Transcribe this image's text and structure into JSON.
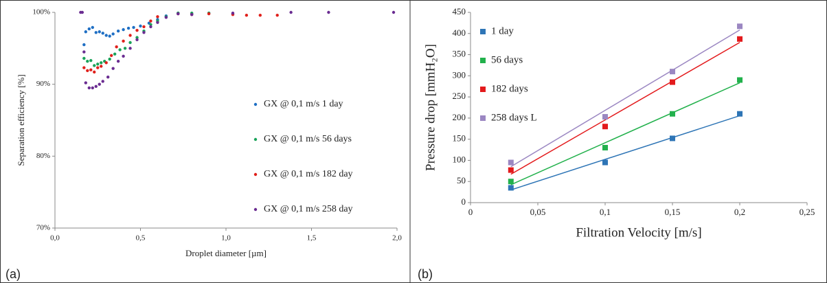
{
  "chart_data": [
    {
      "type": "scatter",
      "label": "(a)",
      "x_label": "Droplet diameter [µm]",
      "y_label": "Separation efficiency [%]",
      "xlim": [
        0,
        2
      ],
      "ylim": [
        70,
        100
      ],
      "xticks": [
        {
          "value": 0,
          "label": "0,0"
        },
        {
          "value": 0.5,
          "label": "0,5"
        },
        {
          "value": 1,
          "label": "1,0"
        },
        {
          "value": 1.5,
          "label": "1,5"
        },
        {
          "value": 2,
          "label": "2,0"
        }
      ],
      "yticks": [
        {
          "value": 70,
          "label": "70%"
        },
        {
          "value": 80,
          "label": "80%"
        },
        {
          "value": 90,
          "label": "90%"
        },
        {
          "value": 100,
          "label": "100%"
        }
      ],
      "grid": false,
      "legend": "right",
      "marker": "dot",
      "series": [
        {
          "name": "GX @ 0,1 m/s 1 day",
          "color": "#1f6fc4",
          "x": [
            0.17,
            0.18,
            0.2,
            0.22,
            0.24,
            0.26,
            0.28,
            0.3,
            0.32,
            0.34,
            0.37,
            0.4,
            0.43,
            0.46,
            0.5,
            0.55,
            0.6,
            0.65,
            0.72,
            0.8,
            0.9,
            1.04
          ],
          "values": [
            95.5,
            97.3,
            97.7,
            97.9,
            97.2,
            97.3,
            97.1,
            96.8,
            96.7,
            97.0,
            97.4,
            97.6,
            97.8,
            97.9,
            98.1,
            98.5,
            99.0,
            99.5,
            99.9,
            99.8,
            99.9,
            99.8
          ]
        },
        {
          "name": "GX @ 0,1 m/s 56 days",
          "color": "#1aa35a",
          "x": [
            0.17,
            0.19,
            0.21,
            0.23,
            0.25,
            0.27,
            0.29,
            0.32,
            0.35,
            0.38,
            0.41,
            0.44,
            0.48,
            0.52,
            0.56,
            0.6,
            0.65,
            0.72,
            0.8,
            0.9
          ],
          "values": [
            93.6,
            93.2,
            93.3,
            92.6,
            92.8,
            93.0,
            93.2,
            93.5,
            94.2,
            94.8,
            95.0,
            95.8,
            96.5,
            97.4,
            98.3,
            98.8,
            99.4,
            99.9,
            99.9,
            99.9
          ]
        },
        {
          "name": "GX @ 0,1 m/s 182 day",
          "color": "#e0201b",
          "x": [
            0.17,
            0.19,
            0.21,
            0.23,
            0.25,
            0.27,
            0.3,
            0.33,
            0.36,
            0.4,
            0.44,
            0.48,
            0.52,
            0.56,
            0.6,
            0.72,
            0.8,
            0.9,
            1.04,
            1.12,
            1.2,
            1.3
          ],
          "values": [
            92.3,
            91.9,
            92.0,
            91.7,
            92.3,
            92.5,
            93.0,
            94.0,
            95.2,
            96.0,
            96.8,
            97.5,
            98.0,
            98.8,
            99.4,
            99.8,
            99.7,
            99.8,
            99.7,
            99.6,
            99.6,
            99.6
          ]
        },
        {
          "name": "GX @ 0,1 m/s 258 day",
          "color": "#6a2c91",
          "x": [
            0.15,
            0.16,
            0.17,
            0.18,
            0.2,
            0.22,
            0.24,
            0.26,
            0.28,
            0.31,
            0.34,
            0.37,
            0.4,
            0.44,
            0.48,
            0.52,
            0.56,
            0.6,
            0.65,
            0.72,
            0.8,
            1.04,
            1.38,
            1.6,
            1.98
          ],
          "values": [
            100,
            100,
            94.5,
            90.2,
            89.5,
            89.5,
            89.7,
            90.0,
            90.4,
            91.0,
            92.2,
            93.2,
            93.9,
            95.0,
            96.2,
            97.2,
            98.0,
            98.6,
            99.3,
            99.8,
            99.7,
            99.9,
            100,
            100,
            100
          ]
        }
      ]
    },
    {
      "type": "scatter",
      "label": "(b)",
      "x_label": "Filtration Velocity [m/s]",
      "y_label": "Pressure drop [mmH₂O]",
      "xlim": [
        0,
        0.25
      ],
      "ylim": [
        0,
        450
      ],
      "xticks": [
        0,
        {
          "value": 0.05,
          "label": "0,05"
        },
        {
          "value": 0.1,
          "label": "0,1"
        },
        {
          "value": 0.15,
          "label": "0,15"
        },
        {
          "value": 0.2,
          "label": "0,2"
        },
        {
          "value": 0.25,
          "label": "0,25"
        }
      ],
      "yticks": [
        0,
        50,
        100,
        150,
        200,
        250,
        300,
        350,
        400,
        450
      ],
      "grid": false,
      "legend": "upper left",
      "marker": "square",
      "trendline": "linear",
      "series": [
        {
          "name": "1 day",
          "color": "#2e75b6",
          "x": [
            0.03,
            0.1,
            0.15,
            0.2
          ],
          "values": [
            35,
            95,
            152,
            210
          ]
        },
        {
          "name": "56 days",
          "color": "#22b14c",
          "x": [
            0.03,
            0.1,
            0.15,
            0.2
          ],
          "values": [
            50,
            130,
            210,
            290
          ]
        },
        {
          "name": "182 days",
          "color": "#e31a1c",
          "x": [
            0.03,
            0.1,
            0.15,
            0.2
          ],
          "values": [
            77,
            180,
            285,
            387
          ]
        },
        {
          "name": "258 days L",
          "color": "#9b87c2",
          "x": [
            0.03,
            0.1,
            0.15,
            0.2
          ],
          "values": [
            95,
            203,
            310,
            417
          ]
        }
      ]
    }
  ]
}
